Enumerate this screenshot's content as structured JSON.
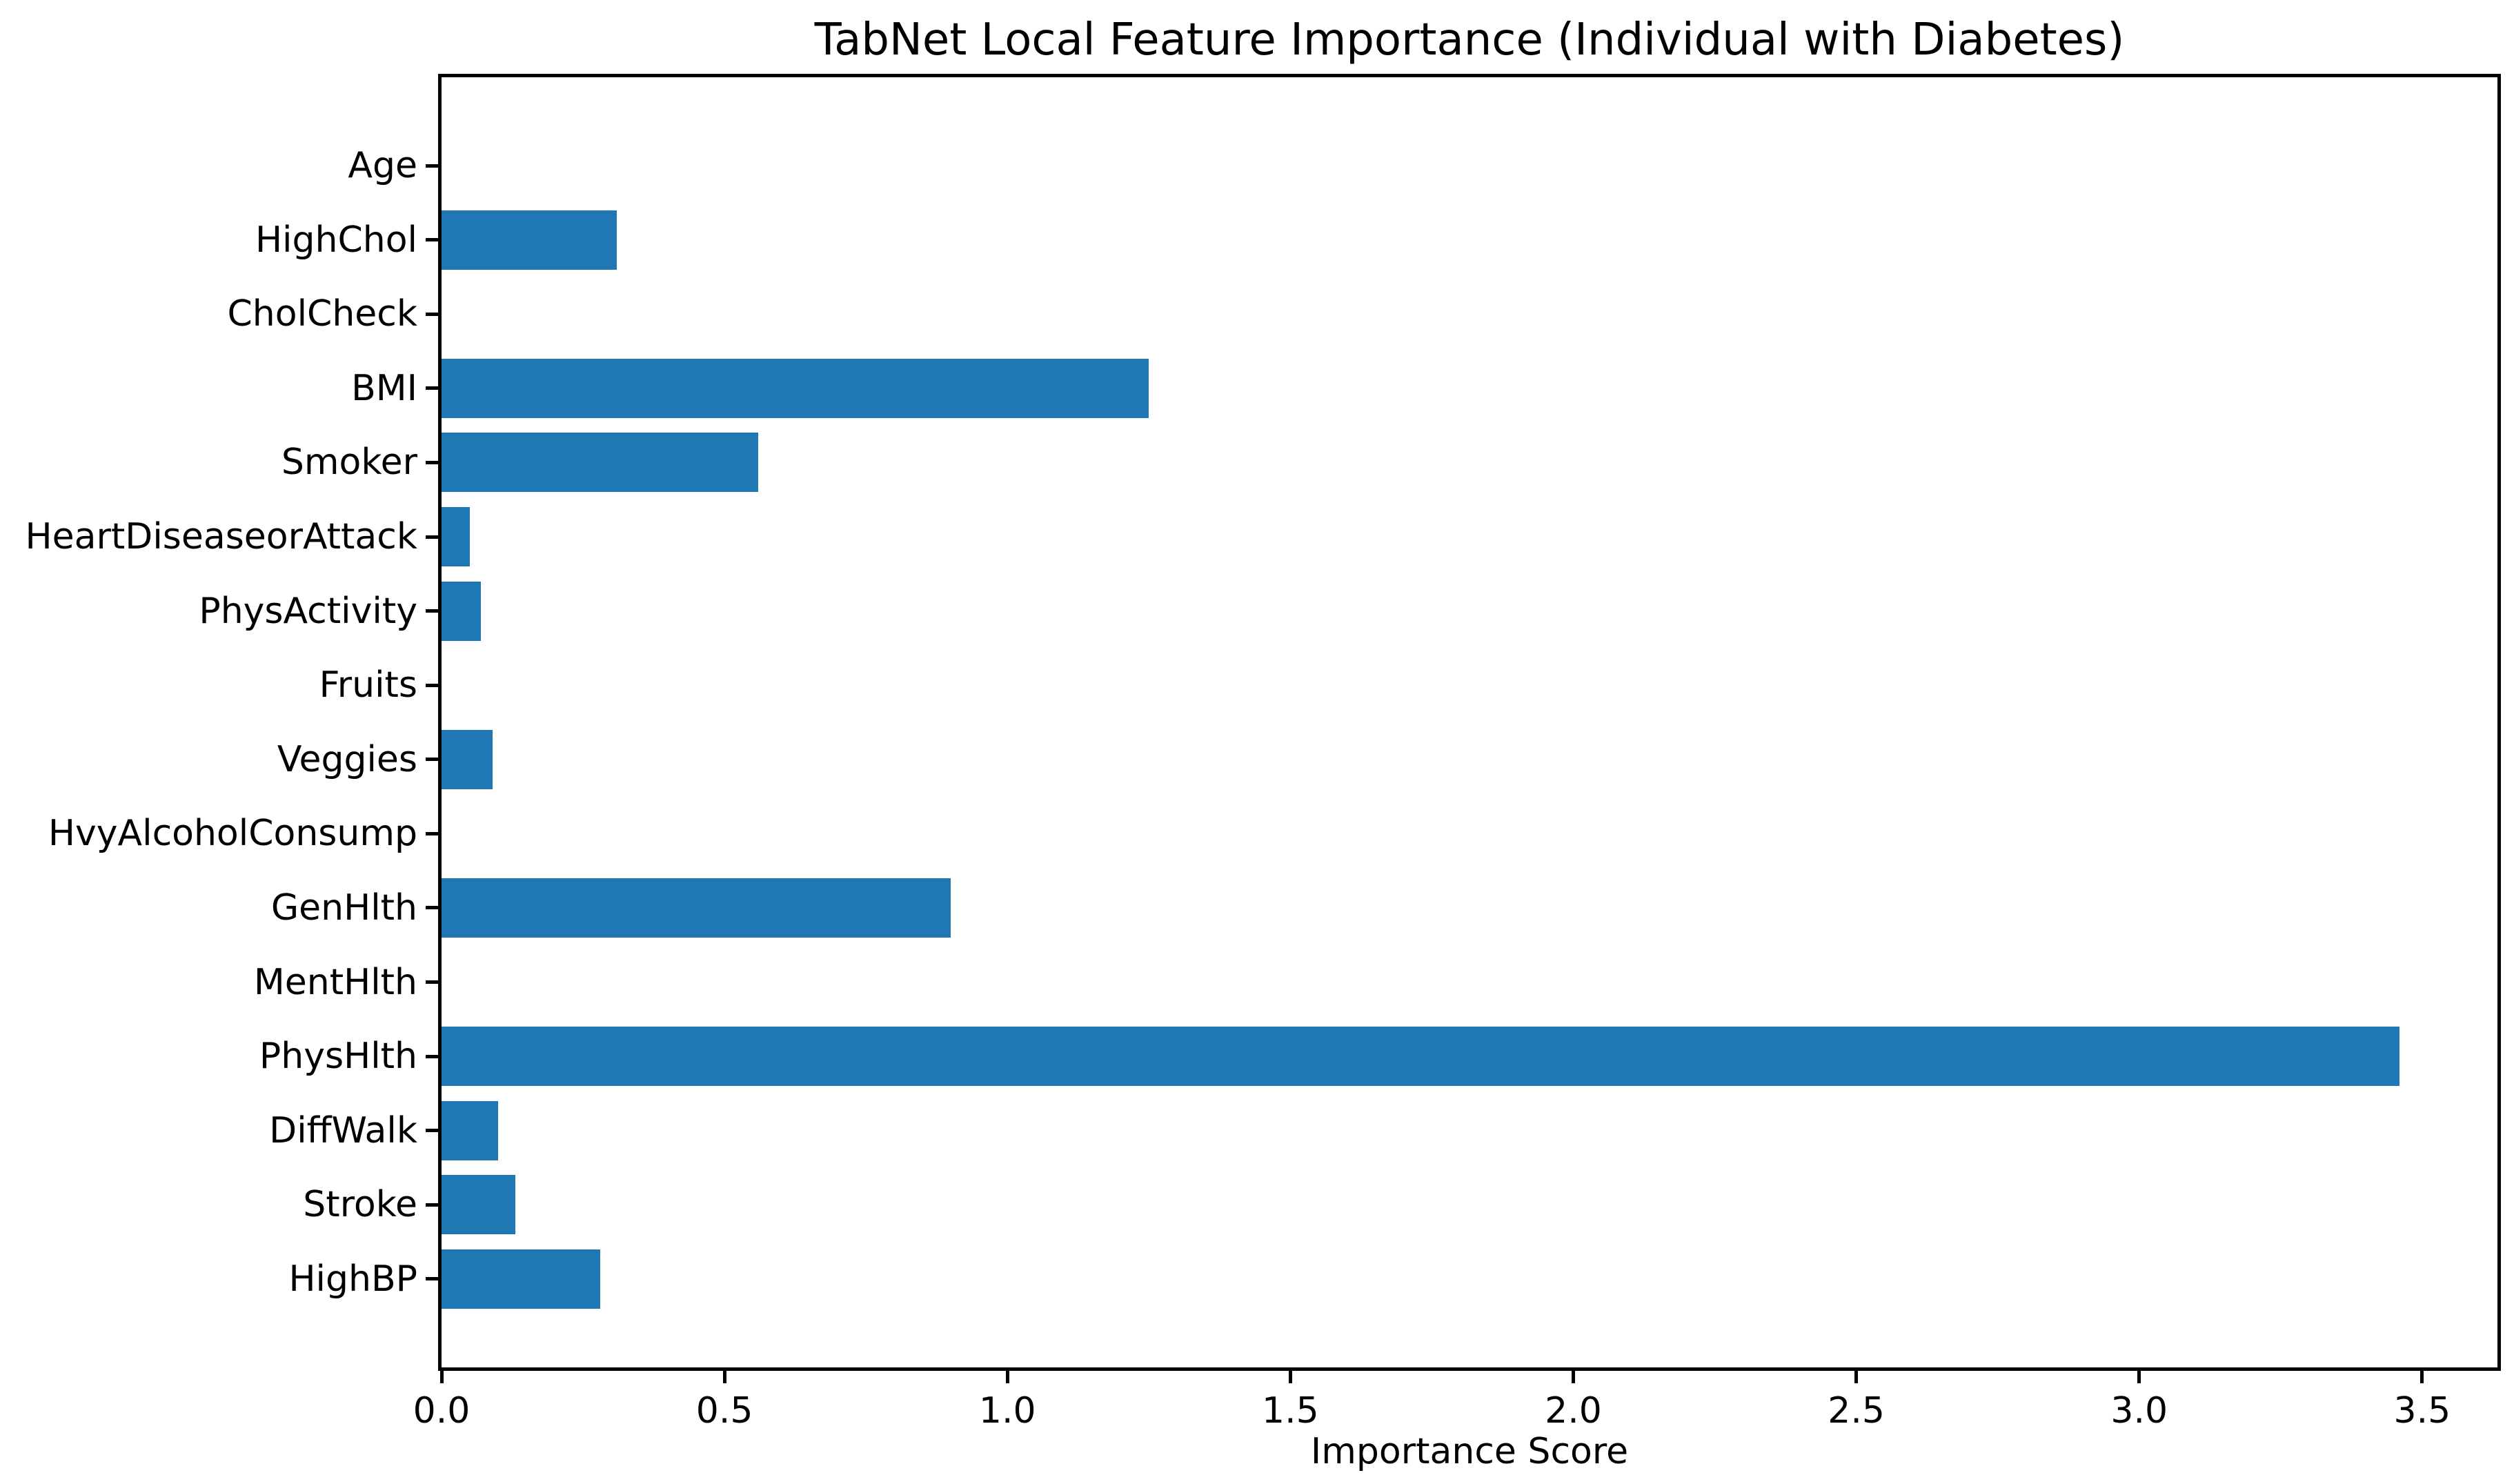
{
  "figure": {
    "background_color": "#ffffff",
    "axis_color": "#000000",
    "text_color": "#000000"
  },
  "chart_data": {
    "type": "bar",
    "orientation": "horizontal",
    "title": "TabNet Local Feature Importance (Individual with Diabetes)",
    "xlabel": "Importance Score",
    "ylabel": "",
    "categories": [
      "Age",
      "HighChol",
      "CholCheck",
      "BMI",
      "Smoker",
      "HeartDiseaseorAttack",
      "PhysActivity",
      "Fruits",
      "Veggies",
      "HvyAlcoholConsump",
      "GenHlth",
      "MentHlth",
      "PhysHlth",
      "DiffWalk",
      "Stroke",
      "HighBP"
    ],
    "values": [
      0.0,
      0.31,
      0.0,
      1.25,
      0.56,
      0.05,
      0.07,
      0.0,
      0.09,
      0.0,
      0.9,
      0.0,
      3.46,
      0.1,
      0.13,
      0.28
    ],
    "bar_color": "#1f77b4",
    "x_tick_labels": [
      "0.0",
      "0.5",
      "1.0",
      "1.5",
      "2.0",
      "2.5",
      "3.0",
      "3.5"
    ],
    "xlim": [
      0,
      3.633
    ],
    "grid": false,
    "legend": null
  }
}
